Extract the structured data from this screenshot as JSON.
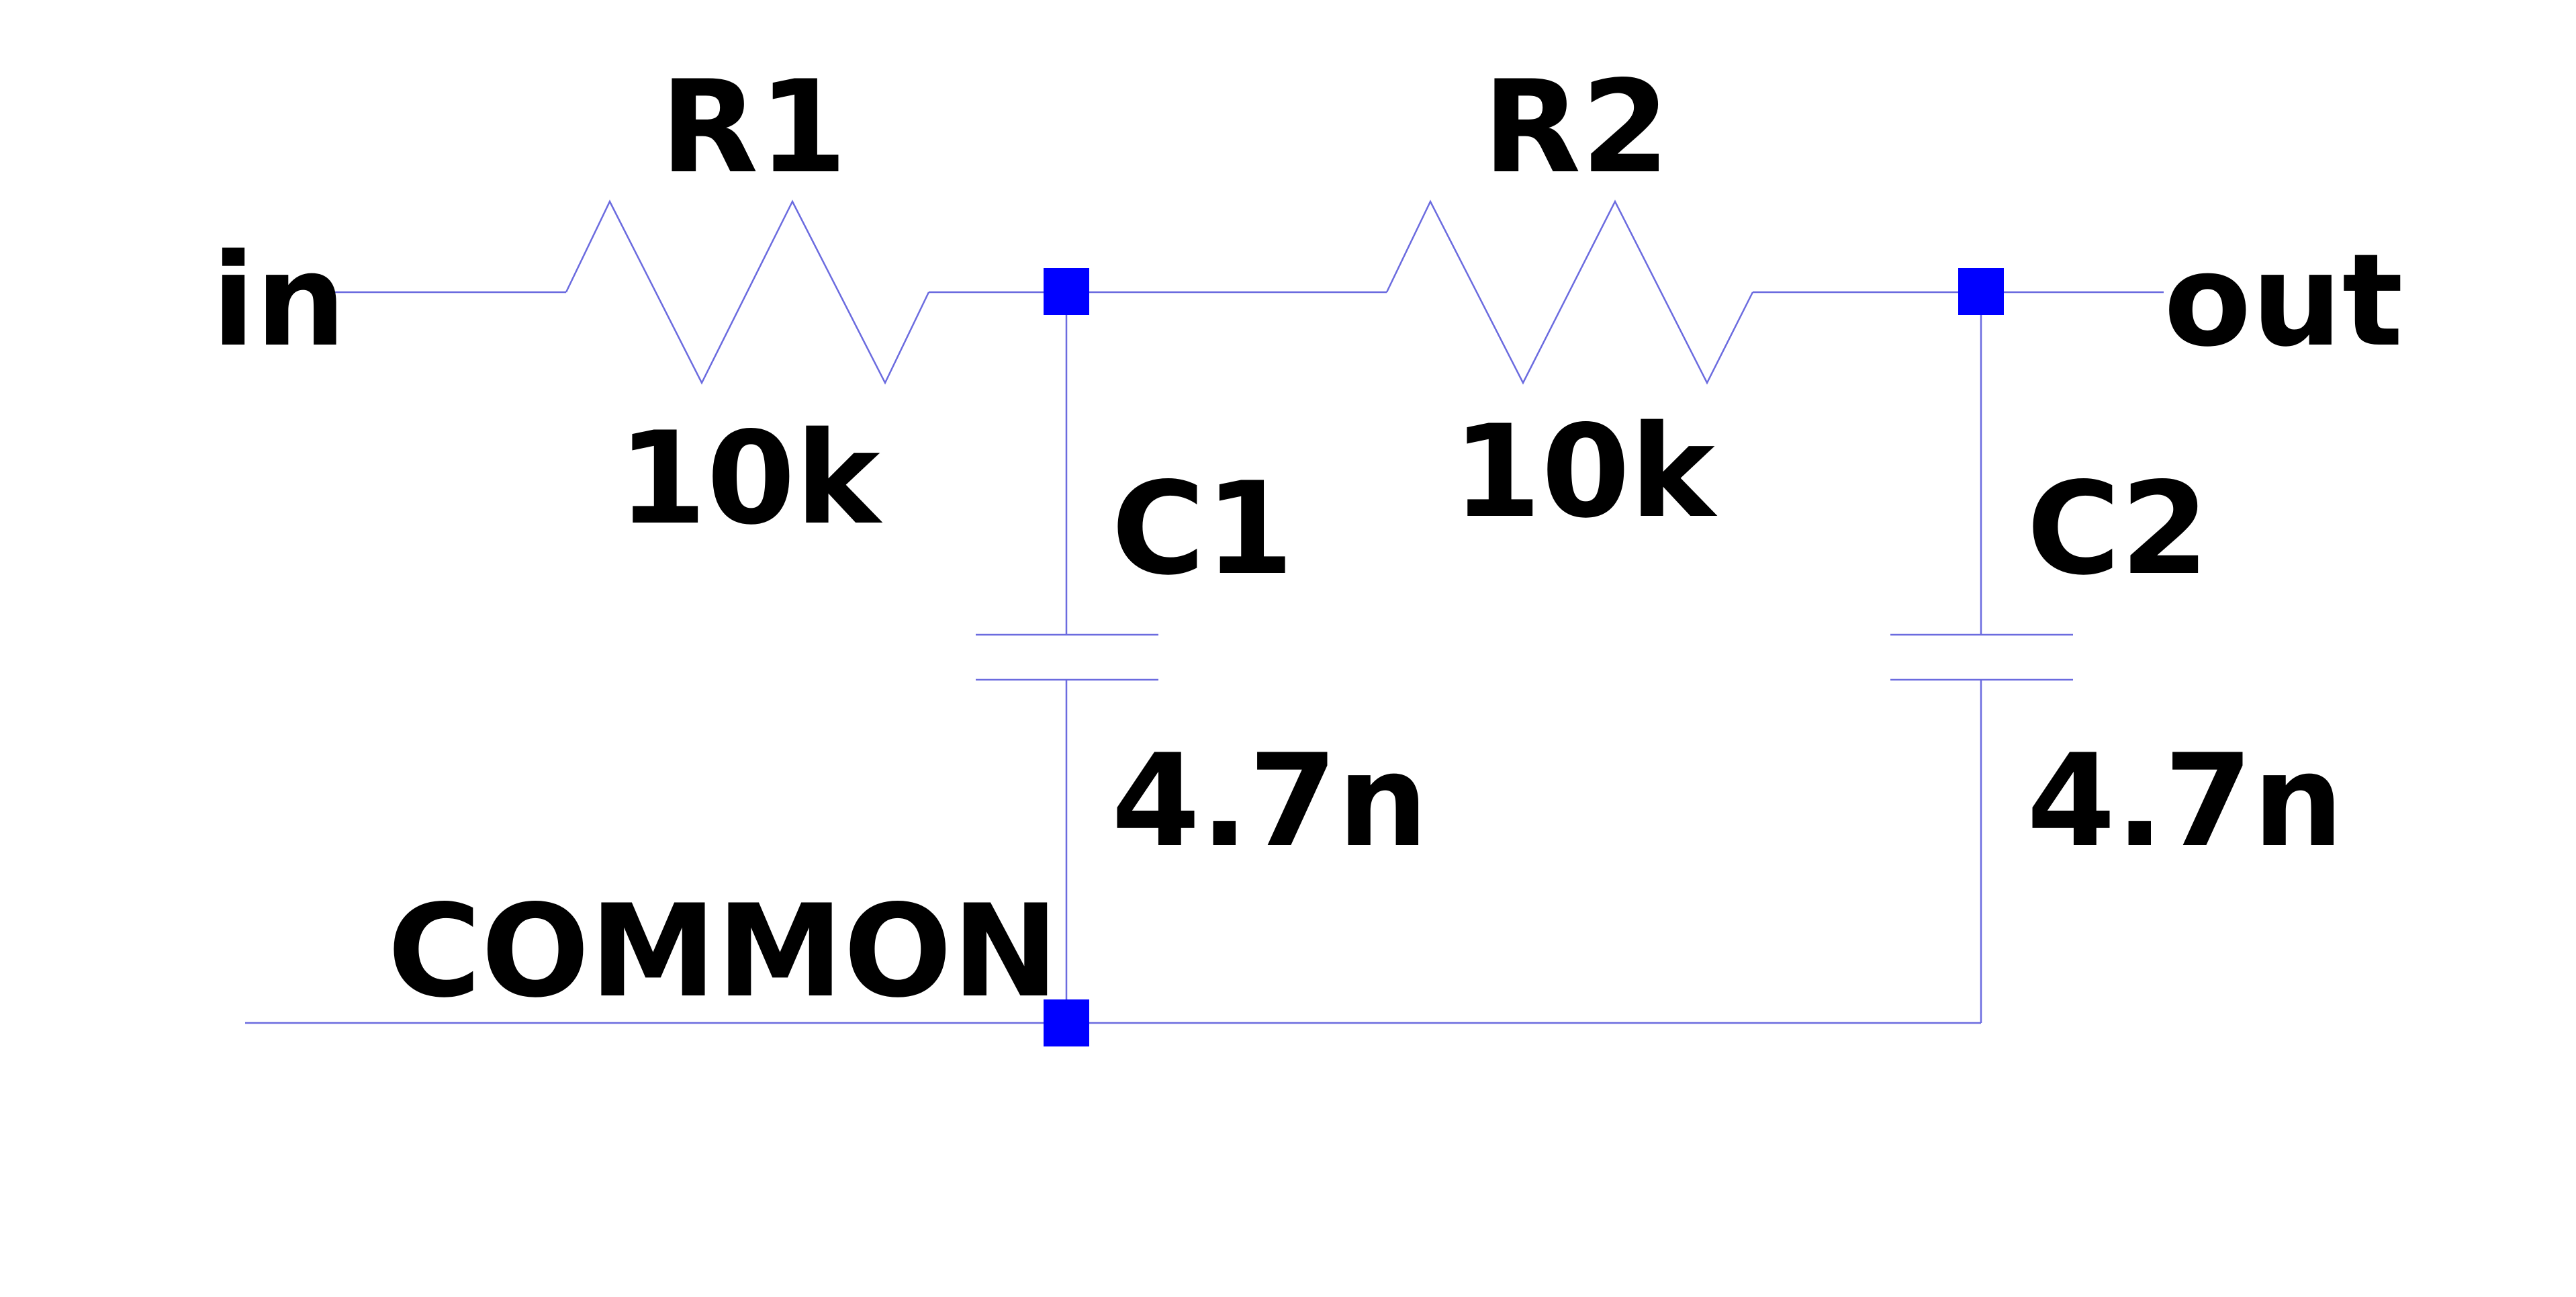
{
  "colors": {
    "background": "#ffffff",
    "wire": "#6b6bdf",
    "junction": "#0000ff",
    "text": "#000000"
  },
  "nets": {
    "input": "in",
    "output": "out",
    "ground": "COMMON"
  },
  "components": {
    "r1": {
      "ref": "R1",
      "value": "10k"
    },
    "r2": {
      "ref": "R2",
      "value": "10k"
    },
    "c1": {
      "ref": "C1",
      "value": "4.7n"
    },
    "c2": {
      "ref": "C2",
      "value": "4.7n"
    }
  }
}
